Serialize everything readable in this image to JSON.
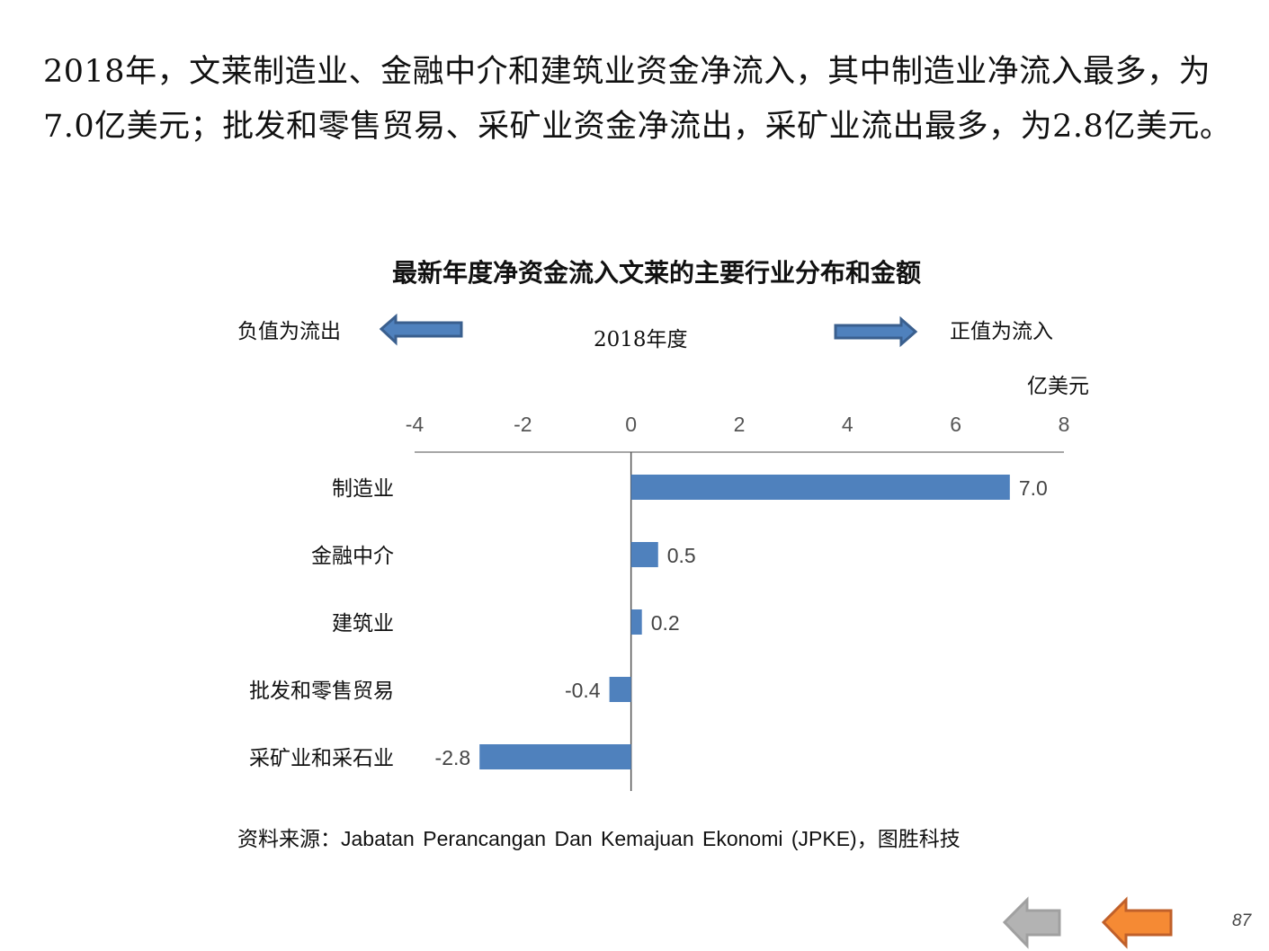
{
  "paragraph": "2018年，文莱制造业、金融中介和建筑业资金净流入，其中制造业净流入最多，为7.0亿美元；批发和零售贸易、采矿业资金净流出，采矿业流出最多，为2.8亿美元。",
  "notes": {
    "negative": "负值为流出",
    "year": "2018年度",
    "positive": "正值为流入",
    "unit": "亿美元"
  },
  "source": "资料来源：Jabatan Perancangan Dan Kemajuan Ekonomi (JPKE)，图胜科技",
  "page_number": "87",
  "colors": {
    "bar": "#4f81bd",
    "arrow_fill": "#4f81bd",
    "arrow_stroke": "#3a5f8e",
    "nav_prev": "#b3b3b3",
    "nav_next": "#f58a34"
  },
  "chart_data": {
    "type": "bar",
    "orientation": "horizontal",
    "title": "最新年度净资金流入文莱的主要行业分布和金额",
    "categories": [
      "制造业",
      "金融中介",
      "建筑业",
      "批发和零售贸易",
      "采矿业和采石业"
    ],
    "values": [
      7.0,
      0.5,
      0.2,
      -0.4,
      -2.8
    ],
    "value_labels": [
      "7.0",
      "0.5",
      "0.2",
      "-0.4",
      "-2.8"
    ],
    "xlim": [
      -4,
      8
    ],
    "ticks": [
      "-4",
      "-2",
      "0",
      "2",
      "4",
      "6",
      "8"
    ],
    "xlabel": "亿美元",
    "grid": false
  }
}
